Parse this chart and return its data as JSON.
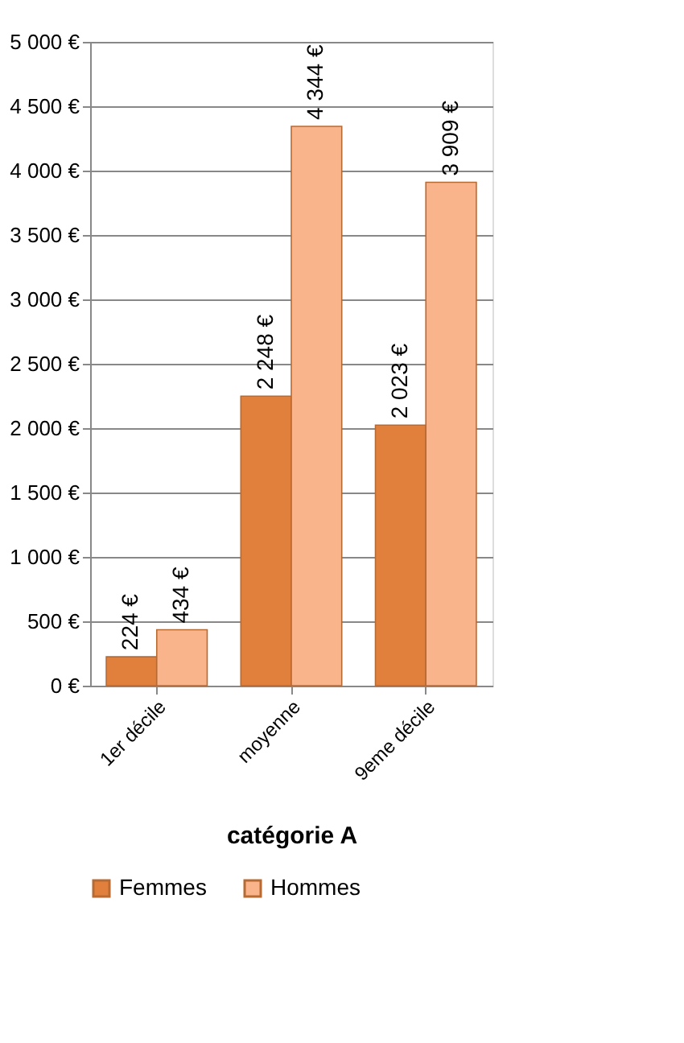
{
  "chart_data": {
    "type": "bar",
    "xlabel": "catégorie  A",
    "categories": [
      "1er décile",
      "moyenne",
      "9eme décile"
    ],
    "series": [
      {
        "name": "Femmes",
        "color": "#e0803c",
        "values": [
          224,
          2248,
          2023
        ],
        "value_labels": [
          "224 €",
          "2 248 €",
          "2 023 €"
        ]
      },
      {
        "name": "Hommes",
        "color": "#f9b48c",
        "values": [
          434,
          4344,
          3909
        ],
        "value_labels": [
          "434 €",
          "4 344 €",
          "3 909 €"
        ]
      }
    ],
    "ylim": [
      0,
      5000
    ],
    "yticks": [
      {
        "value": 0,
        "label": "0 €"
      },
      {
        "value": 500,
        "label": "500 €"
      },
      {
        "value": 1000,
        "label": "1 000 €"
      },
      {
        "value": 1500,
        "label": "1 500 €"
      },
      {
        "value": 2000,
        "label": "2 000 €"
      },
      {
        "value": 2500,
        "label": "2 500 €"
      },
      {
        "value": 3000,
        "label": "3 000 €"
      },
      {
        "value": 3500,
        "label": "3 500 €"
      },
      {
        "value": 4000,
        "label": "4 000 €"
      },
      {
        "value": 4500,
        "label": "4 500 €"
      },
      {
        "value": 5000,
        "label": "5 000 €"
      }
    ],
    "grid": "y",
    "legend": "bottom"
  }
}
